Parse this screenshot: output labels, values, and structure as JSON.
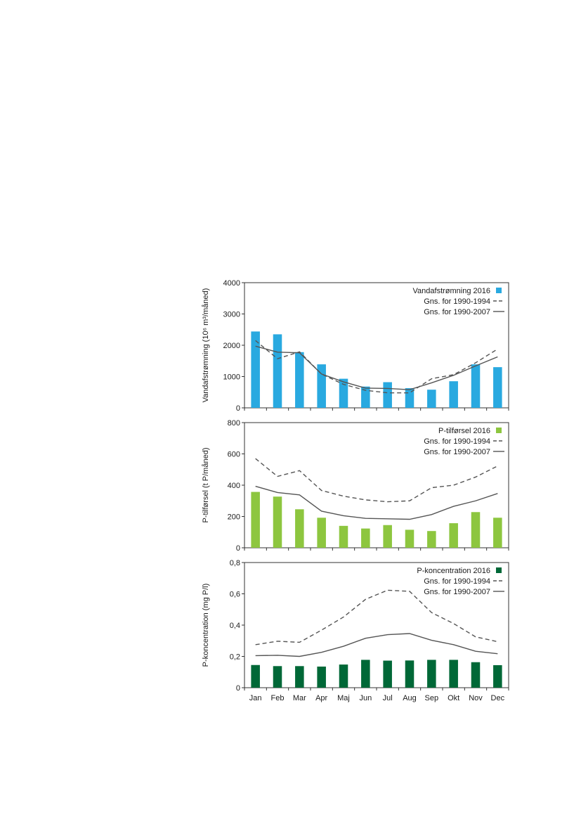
{
  "chart_data": [
    {
      "type": "bar",
      "ylabel": "Vandafstrømning (10⁶ m³/måned)",
      "ylim": [
        0,
        4000
      ],
      "yticks": [
        0,
        1000,
        2000,
        3000,
        4000
      ],
      "ytick_labels": [
        "0",
        "1000",
        "2000",
        "3000",
        "4000"
      ],
      "categories": [
        "Jan",
        "Feb",
        "Mar",
        "Apr",
        "Maj",
        "Jun",
        "Jul",
        "Aug",
        "Sep",
        "Okt",
        "Nov",
        "Dec"
      ],
      "series": [
        {
          "name": "Vandafstrømning 2016",
          "kind": "bar",
          "color": "#29a9e0",
          "values": [
            2440,
            2350,
            1780,
            1390,
            930,
            680,
            820,
            630,
            580,
            850,
            1390,
            1300
          ]
        },
        {
          "name": "Gns. for 1990-1994",
          "kind": "dashed",
          "color": "#555555",
          "values": [
            2150,
            1570,
            1790,
            1080,
            750,
            560,
            480,
            480,
            930,
            1060,
            1440,
            1880
          ]
        },
        {
          "name": "Gns. for 1990-2007",
          "kind": "solid",
          "color": "#555555",
          "values": [
            1970,
            1780,
            1760,
            1080,
            830,
            630,
            620,
            580,
            800,
            1040,
            1340,
            1630
          ]
        }
      ]
    },
    {
      "type": "bar",
      "ylabel": "P-tilførsel (t P/måned)",
      "ylim": [
        0,
        800
      ],
      "yticks": [
        0,
        200,
        400,
        600,
        800
      ],
      "ytick_labels": [
        "0",
        "200",
        "400",
        "600",
        "800"
      ],
      "categories": [
        "Jan",
        "Feb",
        "Mar",
        "Apr",
        "Maj",
        "Jun",
        "Jul",
        "Aug",
        "Sep",
        "Okt",
        "Nov",
        "Dec"
      ],
      "series": [
        {
          "name": "P-tilførsel 2016",
          "kind": "bar",
          "color": "#8dc63f",
          "values": [
            357,
            327,
            246,
            192,
            140,
            123,
            145,
            115,
            107,
            157,
            228,
            192
          ]
        },
        {
          "name": "Gns. for 1990-1994",
          "kind": "dashed",
          "color": "#555555",
          "values": [
            570,
            456,
            493,
            366,
            330,
            306,
            294,
            300,
            384,
            400,
            452,
            523
          ]
        },
        {
          "name": "Gns. for 1990-2007",
          "kind": "solid",
          "color": "#555555",
          "values": [
            393,
            353,
            338,
            234,
            205,
            188,
            185,
            182,
            212,
            265,
            300,
            347
          ]
        }
      ]
    },
    {
      "type": "bar",
      "ylabel": "P-koncentration (mg P/l)",
      "ylim": [
        0,
        0.8
      ],
      "yticks": [
        0,
        0.2,
        0.4,
        0.6,
        0.8
      ],
      "ytick_labels": [
        "0",
        "0,2",
        "0,4",
        "0,6",
        "0,8"
      ],
      "categories": [
        "Jan",
        "Feb",
        "Mar",
        "Apr",
        "Maj",
        "Jun",
        "Jul",
        "Aug",
        "Sep",
        "Okt",
        "Nov",
        "Dec"
      ],
      "series": [
        {
          "name": "P-koncentration 2016",
          "kind": "bar",
          "color": "#006837",
          "values": [
            0.145,
            0.138,
            0.138,
            0.135,
            0.148,
            0.178,
            0.173,
            0.174,
            0.178,
            0.178,
            0.163,
            0.144
          ]
        },
        {
          "name": "Gns. for 1990-1994",
          "kind": "dashed",
          "color": "#555555",
          "values": [
            0.275,
            0.297,
            0.29,
            0.368,
            0.452,
            0.565,
            0.623,
            0.616,
            0.48,
            0.41,
            0.325,
            0.294
          ]
        },
        {
          "name": "Gns. for 1990-2007",
          "kind": "solid",
          "color": "#555555",
          "values": [
            0.205,
            0.207,
            0.2,
            0.226,
            0.265,
            0.316,
            0.339,
            0.346,
            0.303,
            0.275,
            0.233,
            0.217
          ]
        }
      ]
    }
  ]
}
